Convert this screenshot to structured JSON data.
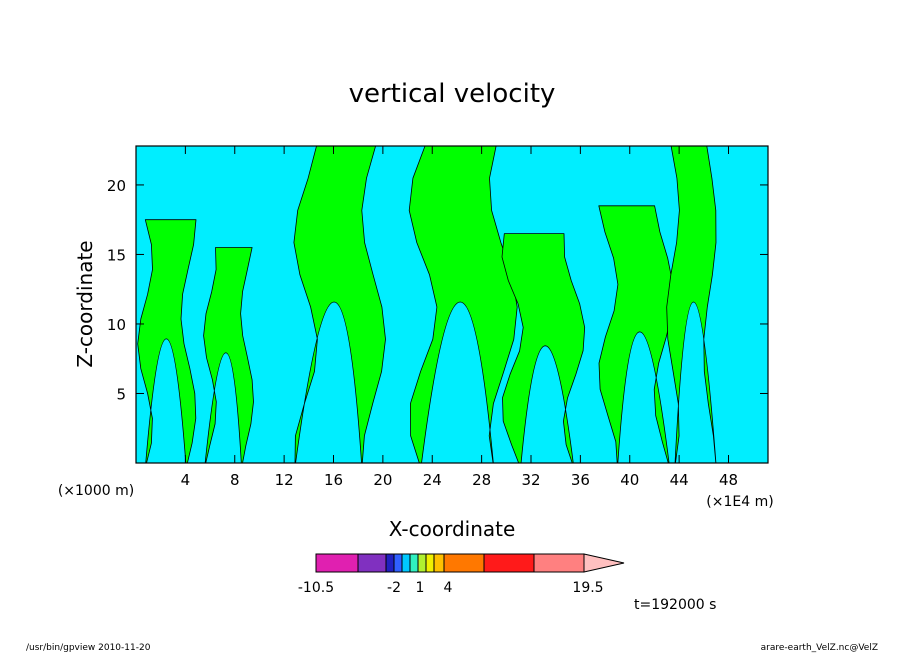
{
  "chart_data": {
    "type": "heatmap",
    "title": "vertical velocity",
    "xlabel": "X-coordinate",
    "ylabel": "Z-coordinate",
    "x_unit_left": "(×1000 m)",
    "x_unit_right": "(×1E4 m)",
    "xlim": [
      0,
      51.2
    ],
    "ylim": [
      0,
      22.8
    ],
    "x_ticks": [
      4,
      8,
      12,
      16,
      20,
      24,
      28,
      32,
      36,
      40,
      44,
      48
    ],
    "y_ticks": [
      5,
      10,
      15,
      20
    ],
    "positive_color": "#00ff00",
    "negative_color": "#00eeff",
    "colorbar": {
      "colors": [
        "#e020b0",
        "#8030c0",
        "#2020c0",
        "#3060ff",
        "#00c8ff",
        "#30f0c0",
        "#b0f030",
        "#f0f000",
        "#ffc000",
        "#ff7800",
        "#ff1a1a",
        "#ff8080",
        "#ffc0c0"
      ],
      "labels": [
        "-10.5",
        "-2",
        "1",
        "4",
        "19.5"
      ]
    },
    "updraft_columns": [
      {
        "x": 2.5,
        "width": 3.5,
        "top": 17.5
      },
      {
        "x": 7.5,
        "width": 3.0,
        "top": 15.5
      },
      {
        "x": 16.5,
        "width": 5.5,
        "top": 22.8
      },
      {
        "x": 26.5,
        "width": 6.5,
        "top": 22.8
      },
      {
        "x": 33,
        "width": 5.0,
        "top": 16.5
      },
      {
        "x": 40.5,
        "width": 4.5,
        "top": 18.5
      },
      {
        "x": 45,
        "width": 3.0,
        "top": 22.8
      }
    ],
    "time_label": "t=192000 s",
    "footer_left": "/usr/bin/gpview   2010-11-20",
    "footer_right": "arare-earth_VelZ.nc@VelZ"
  }
}
